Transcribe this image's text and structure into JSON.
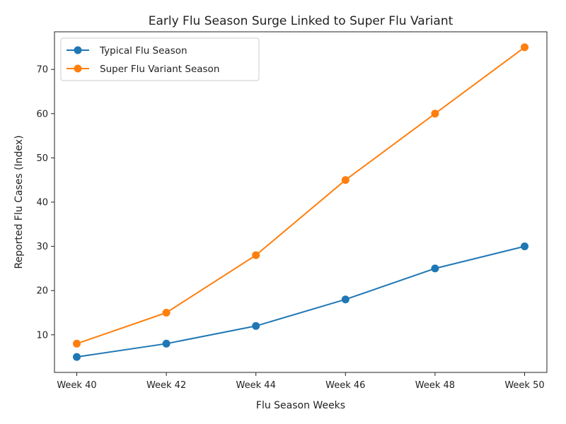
{
  "chart_data": {
    "type": "line",
    "title": "Early Flu Season Surge Linked to Super Flu Variant",
    "xlabel": "Flu Season Weeks",
    "ylabel": "Reported Flu Cases (Index)",
    "categories": [
      "Week 40",
      "Week 42",
      "Week 44",
      "Week 46",
      "Week 48",
      "Week 50"
    ],
    "ylim": [
      1.5,
      78.5
    ],
    "yticks": [
      10,
      20,
      30,
      40,
      50,
      60,
      70
    ],
    "grid": false,
    "legend_position": "top-left",
    "series": [
      {
        "name": "Typical Flu Season",
        "color": "#1f77b4",
        "values": [
          5,
          8,
          12,
          18,
          25,
          30
        ]
      },
      {
        "name": "Super Flu Variant Season",
        "color": "#ff7f0e",
        "values": [
          8,
          15,
          28,
          45,
          60,
          75
        ]
      }
    ]
  }
}
